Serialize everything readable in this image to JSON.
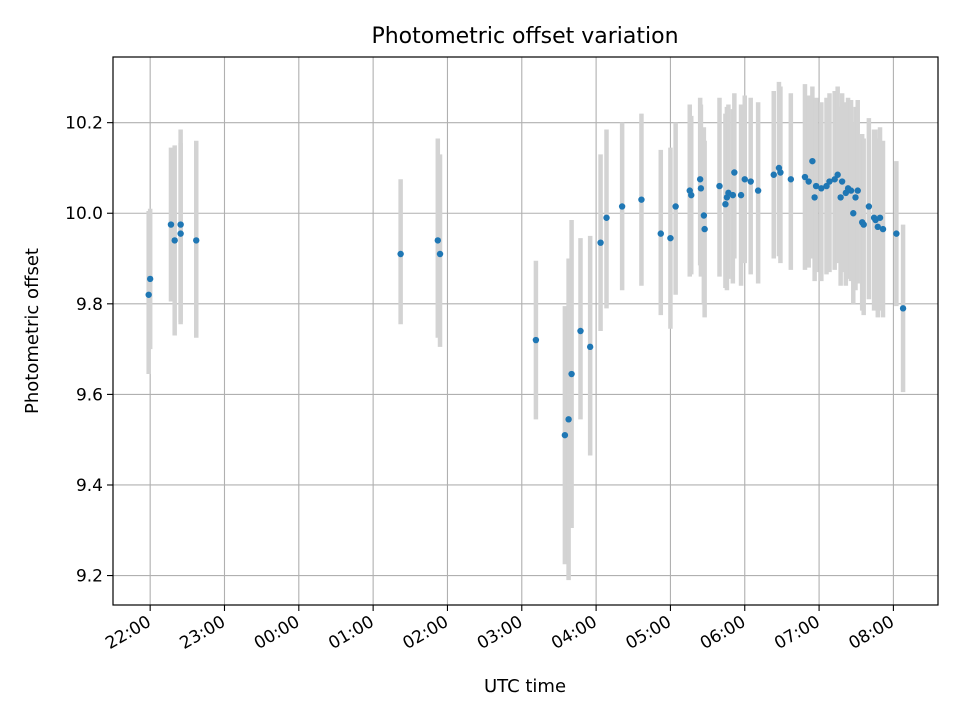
{
  "chart_data": {
    "type": "scatter",
    "title": "Photometric offset variation",
    "xlabel": "UTC time",
    "ylabel": "Photometric offset",
    "grid": true,
    "xlim_hours": [
      21.5,
      32.6
    ],
    "ylim": [
      9.135,
      10.345
    ],
    "x_ticks": [
      {
        "hours": 22,
        "label": "22:00"
      },
      {
        "hours": 23,
        "label": "23:00"
      },
      {
        "hours": 24,
        "label": "00:00"
      },
      {
        "hours": 25,
        "label": "01:00"
      },
      {
        "hours": 26,
        "label": "02:00"
      },
      {
        "hours": 27,
        "label": "03:00"
      },
      {
        "hours": 28,
        "label": "04:00"
      },
      {
        "hours": 29,
        "label": "05:00"
      },
      {
        "hours": 30,
        "label": "06:00"
      },
      {
        "hours": 31,
        "label": "07:00"
      },
      {
        "hours": 32,
        "label": "08:00"
      }
    ],
    "y_ticks": [
      {
        "value": 9.2,
        "label": "9.2"
      },
      {
        "value": 9.4,
        "label": "9.4"
      },
      {
        "value": 9.6,
        "label": "9.6"
      },
      {
        "value": 9.8,
        "label": "9.8"
      },
      {
        "value": 10.0,
        "label": "10.0"
      },
      {
        "value": 10.2,
        "label": "10.2"
      }
    ],
    "colors": {
      "points": "#1f77b4",
      "errorbars": "#d3d3d3",
      "grid": "#b0b0b0"
    },
    "series": [
      {
        "name": "offset",
        "x_hours": [
          21.98,
          22.0,
          22.28,
          22.33,
          22.41,
          22.41,
          22.62,
          25.37,
          25.87,
          25.9,
          27.19,
          27.58,
          27.63,
          27.67,
          27.79,
          27.92,
          28.06,
          28.14,
          28.35,
          28.61,
          28.87,
          29.0,
          29.07,
          29.26,
          29.28,
          29.4,
          29.41,
          29.45,
          29.46,
          29.66,
          29.74,
          29.76,
          29.78,
          29.84,
          29.86,
          29.95,
          30.0,
          30.08,
          30.18,
          30.39,
          30.46,
          30.48,
          30.62,
          30.81,
          30.86,
          30.91,
          30.94,
          30.96,
          31.03,
          31.1,
          31.14,
          31.21,
          31.25,
          31.29,
          31.31,
          31.36,
          31.39,
          31.43,
          31.46,
          31.49,
          31.52,
          31.58,
          31.6,
          31.67,
          31.74,
          31.76,
          31.79,
          31.82,
          31.86,
          32.04,
          32.13
        ],
        "y": [
          9.82,
          9.855,
          9.975,
          9.94,
          9.955,
          9.975,
          9.94,
          9.91,
          9.94,
          9.91,
          9.72,
          9.51,
          9.545,
          9.645,
          9.74,
          9.705,
          9.935,
          9.99,
          10.015,
          10.03,
          9.955,
          9.945,
          10.015,
          10.05,
          10.04,
          10.075,
          10.055,
          9.995,
          9.965,
          10.06,
          10.02,
          10.035,
          10.045,
          10.04,
          10.09,
          10.04,
          10.075,
          10.07,
          10.05,
          10.085,
          10.1,
          10.09,
          10.075,
          10.08,
          10.07,
          10.115,
          10.035,
          10.06,
          10.055,
          10.06,
          10.07,
          10.075,
          10.085,
          10.035,
          10.07,
          10.045,
          10.055,
          10.05,
          10.0,
          10.035,
          10.05,
          9.98,
          9.975,
          10.015,
          9.99,
          9.985,
          9.97,
          9.99,
          9.965,
          9.955,
          9.79
        ],
        "err_low": [
          9.645,
          9.7,
          9.805,
          9.73,
          9.755,
          9.76,
          9.725,
          9.755,
          9.725,
          9.705,
          9.545,
          9.225,
          9.19,
          9.305,
          9.545,
          9.465,
          9.74,
          9.79,
          9.83,
          9.84,
          9.775,
          9.745,
          9.82,
          9.86,
          9.865,
          9.885,
          9.86,
          9.8,
          9.77,
          9.86,
          9.835,
          9.83,
          9.855,
          9.845,
          9.9,
          9.84,
          9.89,
          9.865,
          9.845,
          9.9,
          9.905,
          9.89,
          9.875,
          9.875,
          9.88,
          9.9,
          9.85,
          9.87,
          9.85,
          9.865,
          9.87,
          9.875,
          9.89,
          9.84,
          9.87,
          9.84,
          9.855,
          9.85,
          9.8,
          9.83,
          9.845,
          9.785,
          9.775,
          9.81,
          9.785,
          9.79,
          9.77,
          9.785,
          9.77,
          9.795,
          9.605
        ],
        "err_high": [
          10.005,
          10.01,
          10.145,
          10.15,
          10.155,
          10.185,
          10.16,
          10.075,
          10.165,
          10.13,
          9.895,
          9.795,
          9.9,
          9.985,
          9.945,
          9.95,
          10.13,
          10.185,
          10.2,
          10.22,
          10.14,
          10.145,
          10.2,
          10.24,
          10.215,
          10.255,
          10.24,
          10.19,
          10.16,
          10.255,
          10.22,
          10.235,
          10.24,
          10.23,
          10.265,
          10.24,
          10.26,
          10.255,
          10.245,
          10.27,
          10.29,
          10.28,
          10.265,
          10.285,
          10.26,
          10.28,
          10.22,
          10.255,
          10.245,
          10.255,
          10.265,
          10.27,
          10.28,
          10.235,
          10.265,
          10.245,
          10.255,
          10.25,
          10.2,
          10.235,
          10.25,
          10.175,
          10.165,
          10.21,
          10.185,
          10.185,
          10.165,
          10.19,
          10.16,
          10.115,
          9.975
        ]
      }
    ]
  }
}
